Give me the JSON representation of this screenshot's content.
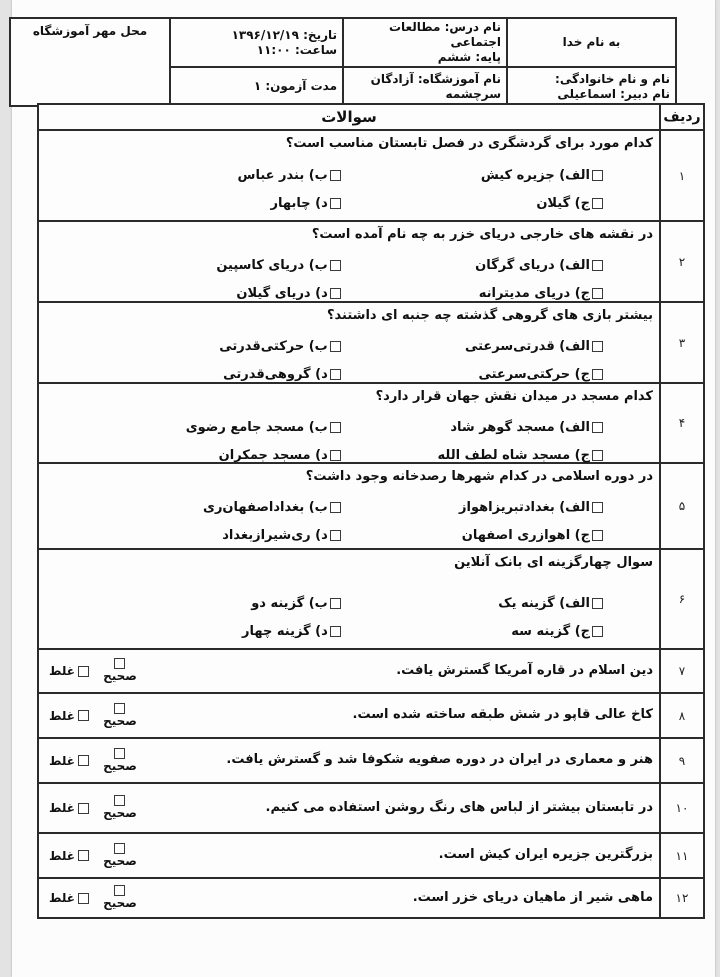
{
  "colors": {
    "background": "#e3e3e3",
    "paper": "#fcfcfc",
    "border": "#2b2b2b",
    "text": "#101010"
  },
  "header": {
    "bismillah": "به نام خدا",
    "student_name_label": "نام و نام خانوادگی:",
    "teacher_name": "نام دبیر: اسماعیلی",
    "course_name": "نام درس: مطالعات اجتماعی",
    "grade": "پایه: ششم",
    "school_name_line1": "نام آموزشگاه: آزادگان",
    "school_name_line2": "سرچشمه",
    "date": "تاریخ: ۱۳۹۶/۱۲/۱۹",
    "time": "ساعت: ۱۱:۰۰",
    "duration": "مدت آزمون: ۱",
    "stamp_label": "محل مهر آموزشگاه"
  },
  "table": {
    "questions_header": "سوالات",
    "row_header": "ردیف",
    "labels": {
      "true": "صحیح",
      "false": "غلط"
    },
    "mc": [
      {
        "num": "۱",
        "text": "کدام مورد برای گردشگری در فصل تابستان مناسب است؟",
        "options": [
          "الف) جزیره کیش",
          "ب) بندر عباس",
          "ج) گیلان",
          "د) چابهار"
        ]
      },
      {
        "num": "۲",
        "text": "در نقشه های خارجی دریای خزر به چه نام آمده است؟",
        "options": [
          "الف) دریای گرگان",
          "ب) دریای کاسپین",
          "ج) دریای مدیترانه",
          "د) دریای گیلان"
        ]
      },
      {
        "num": "۳",
        "text": "بیشتر بازی های گروهی گذشته چه جنبه ای داشتند؟",
        "options": [
          "الف) قدرتی‌سرعتی",
          "ب) حرکتی‌قدرتی",
          "ج) حرکتی‌سرعتی",
          "د) گروهی‌قدرتی"
        ]
      },
      {
        "num": "۴",
        "text": "کدام مسجد در میدان نقش جهان قرار دارد؟",
        "options": [
          "الف) مسجد گوهر شاد",
          "ب) مسجد جامع رضوی",
          "ج) مسجد شاه لطف الله",
          "د) مسجد جمکران"
        ]
      },
      {
        "num": "۵",
        "text": "در دوره اسلامی در کدام شهرها رصدخانه وجود داشت؟",
        "options": [
          "الف) بغدادتبریزاهواز",
          "ب) بغداداصفهان‌ری",
          "ج) اهوازری اصفهان",
          "د) ری‌شیرازبغداد"
        ]
      },
      {
        "num": "۶",
        "text": "سوال چهارگزینه ای بانک آنلاین",
        "options": [
          "الف) گزینه یک",
          "ب) گزینه دو",
          "ج) گزینه سه",
          "د) گزینه چهار"
        ]
      }
    ],
    "tf": [
      {
        "num": "۷",
        "text": "دین اسلام در قاره آمریکا گسترش یافت."
      },
      {
        "num": "۸",
        "text": "کاخ عالی قاپو در شش طبقه ساخته شده است."
      },
      {
        "num": "۹",
        "text": "هنر و معماری در ایران در دوره صفویه شکوفا شد و گسترش یافت."
      },
      {
        "num": "۱۰",
        "text": "در تابستان بیشتر از لباس های رنگ روشن استفاده می کنیم."
      },
      {
        "num": "۱۱",
        "text": "بزرگترین جزیره ایران کیش است."
      },
      {
        "num": "۱۲",
        "text": "ماهی شیر از ماهیان دریای خزر است."
      }
    ]
  }
}
